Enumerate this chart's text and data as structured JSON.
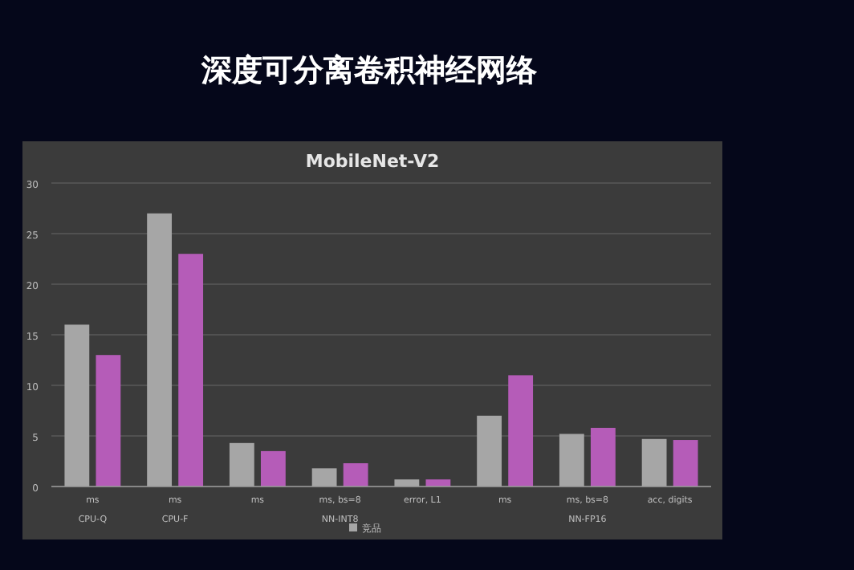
{
  "chart_data": {
    "type": "bar",
    "title": "深度可分离卷积神经网络",
    "subtitle": "MobileNet-V2",
    "categories": [
      "ms\nCPU-Q",
      "ms\nCPU-F",
      "ms",
      "ms, bs=8\nNN-INT8",
      "error, L1",
      "ms",
      "ms, bs=8\nNN-FP16",
      "acc, digits"
    ],
    "series": [
      {
        "name": "竞品",
        "color": "#a6a6a6",
        "values": [
          16,
          27,
          4.3,
          1.8,
          0.7,
          7.0,
          5.2,
          4.7
        ]
      },
      {
        "color": "#b55cb8",
        "values": [
          13,
          23,
          3.5,
          2.3,
          0.7,
          11.0,
          5.8,
          4.6
        ]
      }
    ],
    "ylim": [
      0,
      30
    ],
    "yticks": [
      0,
      5,
      10,
      15,
      20,
      25,
      30
    ],
    "grid": "y",
    "legend": "bottom"
  }
}
